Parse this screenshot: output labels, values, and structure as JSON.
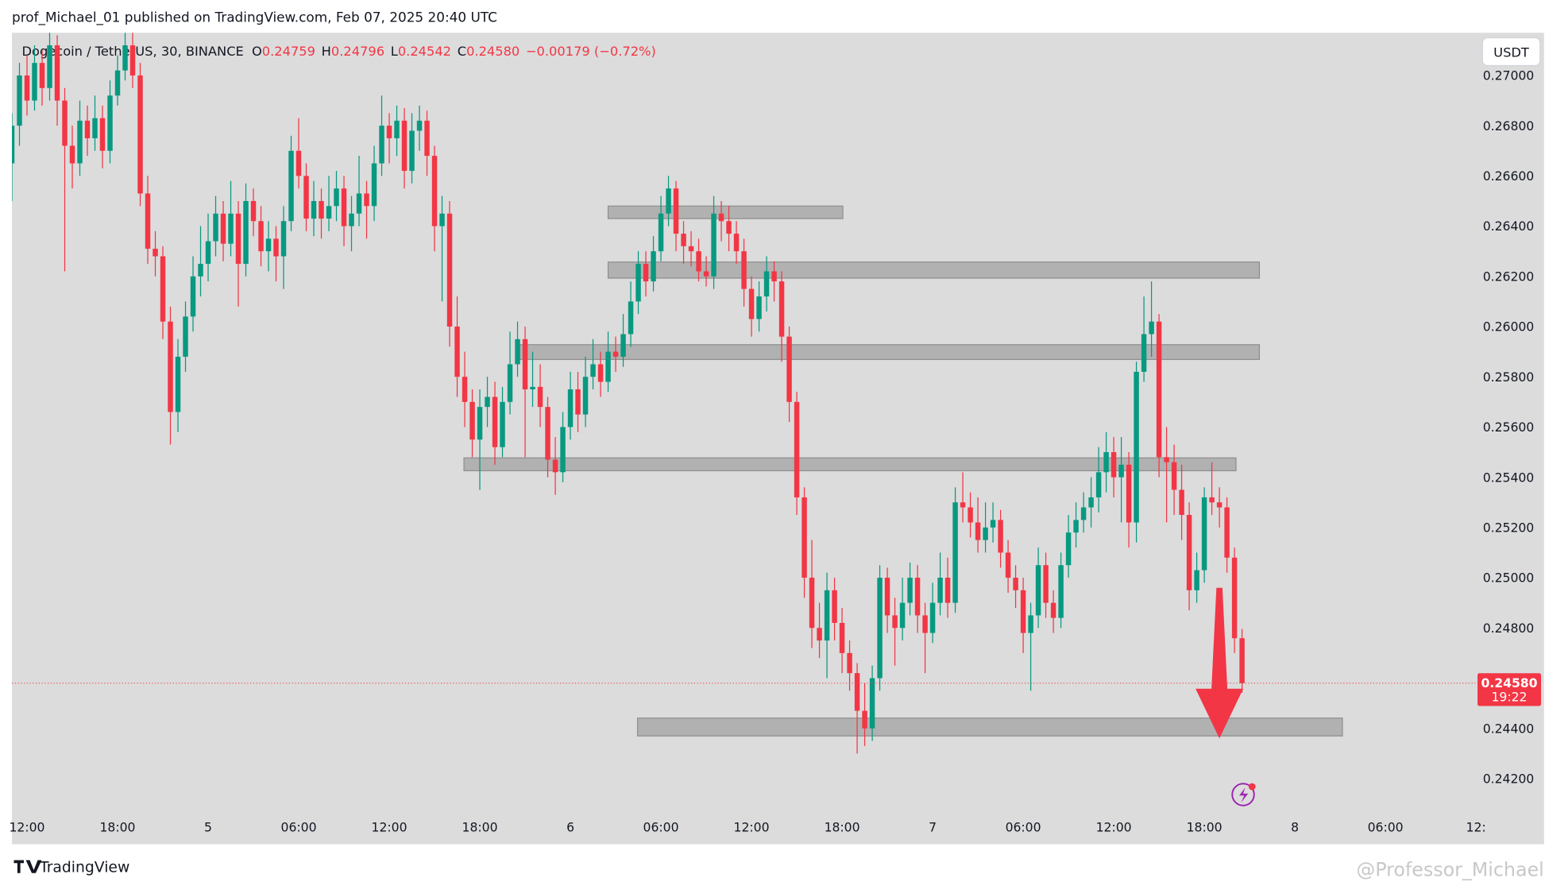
{
  "header": {
    "publisher": "prof_Michael_01 published on TradingView.com, Feb 07, 2025 20:40 UTC"
  },
  "chart_data": {
    "type": "candlestick",
    "symbol": "Dogecoin / TetherUS, 30, BINANCE",
    "legend": {
      "o_label": "O",
      "open": 0.24759,
      "h_label": "H",
      "high": 0.24796,
      "l_label": "L",
      "low": 0.24542,
      "c_label": "C",
      "close": "0.24580",
      "change": "−0.00179 (−0.72%)"
    },
    "currency": "USDT",
    "last_price": {
      "value": 0.2458,
      "label": "0.24580"
    },
    "countdown": "19:22",
    "up_color": "#089981",
    "down_color": "#f23645",
    "zone_color": "#a9a9a9",
    "ohlc": [
      [
        0.2665,
        0.2685,
        0.265,
        0.268
      ],
      [
        0.268,
        0.2705,
        0.2672,
        0.27
      ],
      [
        0.27,
        0.2708,
        0.2684,
        0.269
      ],
      [
        0.269,
        0.2712,
        0.2686,
        0.2705
      ],
      [
        0.2705,
        0.271,
        0.2688,
        0.2695
      ],
      [
        0.2695,
        0.2718,
        0.269,
        0.2712
      ],
      [
        0.2712,
        0.2716,
        0.268,
        0.269
      ],
      [
        0.269,
        0.2695,
        0.2622,
        0.2672
      ],
      [
        0.2672,
        0.268,
        0.2655,
        0.2665
      ],
      [
        0.2665,
        0.269,
        0.266,
        0.2682
      ],
      [
        0.2682,
        0.2688,
        0.2668,
        0.2675
      ],
      [
        0.2675,
        0.2692,
        0.267,
        0.2683
      ],
      [
        0.2683,
        0.2688,
        0.2663,
        0.267
      ],
      [
        0.267,
        0.2698,
        0.2665,
        0.2692
      ],
      [
        0.2692,
        0.2708,
        0.2688,
        0.2702
      ],
      [
        0.2702,
        0.272,
        0.2698,
        0.2712
      ],
      [
        0.2712,
        0.2718,
        0.2695,
        0.27
      ],
      [
        0.27,
        0.2705,
        0.2648,
        0.2653
      ],
      [
        0.2653,
        0.266,
        0.2625,
        0.2631
      ],
      [
        0.2631,
        0.2638,
        0.262,
        0.2628
      ],
      [
        0.2628,
        0.2632,
        0.2595,
        0.2602
      ],
      [
        0.2602,
        0.2608,
        0.2553,
        0.2566
      ],
      [
        0.2566,
        0.2595,
        0.2558,
        0.2588
      ],
      [
        0.2588,
        0.261,
        0.2582,
        0.2604
      ],
      [
        0.2604,
        0.2628,
        0.2598,
        0.262
      ],
      [
        0.262,
        0.264,
        0.2612,
        0.2625
      ],
      [
        0.2625,
        0.2645,
        0.2618,
        0.2634
      ],
      [
        0.2634,
        0.2652,
        0.2628,
        0.2645
      ],
      [
        0.2645,
        0.265,
        0.2626,
        0.2633
      ],
      [
        0.2633,
        0.2658,
        0.2628,
        0.2645
      ],
      [
        0.2645,
        0.265,
        0.2608,
        0.2625
      ],
      [
        0.2625,
        0.2657,
        0.262,
        0.265
      ],
      [
        0.265,
        0.2655,
        0.2636,
        0.2642
      ],
      [
        0.2642,
        0.2648,
        0.2624,
        0.263
      ],
      [
        0.263,
        0.2642,
        0.2622,
        0.2635
      ],
      [
        0.2635,
        0.264,
        0.2618,
        0.2628
      ],
      [
        0.2628,
        0.2648,
        0.2615,
        0.2642
      ],
      [
        0.2642,
        0.2676,
        0.2638,
        0.267
      ],
      [
        0.267,
        0.2683,
        0.2655,
        0.266
      ],
      [
        0.266,
        0.2665,
        0.2638,
        0.2643
      ],
      [
        0.2643,
        0.2658,
        0.2636,
        0.265
      ],
      [
        0.265,
        0.2655,
        0.2635,
        0.2643
      ],
      [
        0.2643,
        0.266,
        0.2638,
        0.2648
      ],
      [
        0.2648,
        0.2662,
        0.2642,
        0.2655
      ],
      [
        0.2655,
        0.266,
        0.2632,
        0.264
      ],
      [
        0.264,
        0.2652,
        0.263,
        0.2645
      ],
      [
        0.2645,
        0.2668,
        0.264,
        0.2653
      ],
      [
        0.2653,
        0.2658,
        0.2635,
        0.2648
      ],
      [
        0.2648,
        0.2672,
        0.2642,
        0.2665
      ],
      [
        0.2665,
        0.2692,
        0.266,
        0.268
      ],
      [
        0.268,
        0.2685,
        0.2665,
        0.2675
      ],
      [
        0.2675,
        0.2688,
        0.2668,
        0.2682
      ],
      [
        0.2682,
        0.2687,
        0.2655,
        0.2662
      ],
      [
        0.2662,
        0.2685,
        0.2657,
        0.2678
      ],
      [
        0.2678,
        0.2688,
        0.267,
        0.2682
      ],
      [
        0.2682,
        0.2686,
        0.266,
        0.2668
      ],
      [
        0.2668,
        0.2672,
        0.263,
        0.264
      ],
      [
        0.264,
        0.2652,
        0.261,
        0.2645
      ],
      [
        0.2645,
        0.265,
        0.2592,
        0.26
      ],
      [
        0.26,
        0.2612,
        0.2572,
        0.258
      ],
      [
        0.258,
        0.259,
        0.256,
        0.257
      ],
      [
        0.257,
        0.2575,
        0.2548,
        0.2555
      ],
      [
        0.2555,
        0.2575,
        0.2535,
        0.2568
      ],
      [
        0.2568,
        0.258,
        0.256,
        0.2572
      ],
      [
        0.2572,
        0.2578,
        0.2545,
        0.2552
      ],
      [
        0.2552,
        0.2576,
        0.2548,
        0.257
      ],
      [
        0.257,
        0.2598,
        0.2565,
        0.2585
      ],
      [
        0.2585,
        0.2602,
        0.258,
        0.2595
      ],
      [
        0.2595,
        0.26,
        0.2548,
        0.2575
      ],
      [
        0.2575,
        0.259,
        0.2568,
        0.2576
      ],
      [
        0.2576,
        0.2585,
        0.256,
        0.2568
      ],
      [
        0.2568,
        0.2572,
        0.254,
        0.2547
      ],
      [
        0.2547,
        0.2556,
        0.2533,
        0.2542
      ],
      [
        0.2542,
        0.2566,
        0.2538,
        0.256
      ],
      [
        0.256,
        0.2582,
        0.2555,
        0.2575
      ],
      [
        0.2575,
        0.2582,
        0.2558,
        0.2565
      ],
      [
        0.2565,
        0.2588,
        0.256,
        0.258
      ],
      [
        0.258,
        0.2595,
        0.2575,
        0.2585
      ],
      [
        0.2585,
        0.259,
        0.2572,
        0.2578
      ],
      [
        0.2578,
        0.2598,
        0.2574,
        0.259
      ],
      [
        0.259,
        0.2596,
        0.2582,
        0.2588
      ],
      [
        0.2588,
        0.2605,
        0.2584,
        0.2597
      ],
      [
        0.2597,
        0.2618,
        0.2592,
        0.261
      ],
      [
        0.261,
        0.263,
        0.2605,
        0.2625
      ],
      [
        0.2625,
        0.263,
        0.2612,
        0.2618
      ],
      [
        0.2618,
        0.2636,
        0.2614,
        0.263
      ],
      [
        0.263,
        0.2652,
        0.2626,
        0.2645
      ],
      [
        0.2645,
        0.266,
        0.264,
        0.2655
      ],
      [
        0.2655,
        0.2658,
        0.263,
        0.2637
      ],
      [
        0.2637,
        0.2642,
        0.2625,
        0.2632
      ],
      [
        0.2632,
        0.2638,
        0.2624,
        0.263
      ],
      [
        0.263,
        0.2635,
        0.2618,
        0.2622
      ],
      [
        0.2622,
        0.2628,
        0.2616,
        0.262
      ],
      [
        0.262,
        0.2652,
        0.2615,
        0.2645
      ],
      [
        0.2645,
        0.265,
        0.2634,
        0.2642
      ],
      [
        0.2642,
        0.2648,
        0.263,
        0.2637
      ],
      [
        0.2637,
        0.2642,
        0.2625,
        0.263
      ],
      [
        0.263,
        0.2635,
        0.2608,
        0.2615
      ],
      [
        0.2615,
        0.262,
        0.2596,
        0.2603
      ],
      [
        0.2603,
        0.2618,
        0.2598,
        0.2612
      ],
      [
        0.2612,
        0.2628,
        0.2606,
        0.2622
      ],
      [
        0.2622,
        0.2626,
        0.261,
        0.2618
      ],
      [
        0.2618,
        0.2622,
        0.2586,
        0.2596
      ],
      [
        0.2596,
        0.26,
        0.2562,
        0.257
      ],
      [
        0.257,
        0.2574,
        0.2525,
        0.2532
      ],
      [
        0.2532,
        0.2536,
        0.2492,
        0.25
      ],
      [
        0.25,
        0.2515,
        0.2472,
        0.248
      ],
      [
        0.248,
        0.249,
        0.2468,
        0.2475
      ],
      [
        0.2475,
        0.2502,
        0.246,
        0.2495
      ],
      [
        0.2495,
        0.25,
        0.2475,
        0.2482
      ],
      [
        0.2482,
        0.2488,
        0.2462,
        0.247
      ],
      [
        0.247,
        0.2475,
        0.2455,
        0.2462
      ],
      [
        0.2462,
        0.2466,
        0.243,
        0.2447
      ],
      [
        0.2447,
        0.2458,
        0.2433,
        0.244
      ],
      [
        0.244,
        0.2465,
        0.2435,
        0.246
      ],
      [
        0.246,
        0.2505,
        0.2455,
        0.25
      ],
      [
        0.25,
        0.2504,
        0.2478,
        0.2485
      ],
      [
        0.2485,
        0.2492,
        0.2465,
        0.248
      ],
      [
        0.248,
        0.25,
        0.2475,
        0.249
      ],
      [
        0.249,
        0.2506,
        0.2485,
        0.25
      ],
      [
        0.25,
        0.2505,
        0.2478,
        0.2485
      ],
      [
        0.2485,
        0.249,
        0.2462,
        0.2478
      ],
      [
        0.2478,
        0.2498,
        0.2474,
        0.249
      ],
      [
        0.249,
        0.251,
        0.2485,
        0.25
      ],
      [
        0.25,
        0.2508,
        0.2484,
        0.249
      ],
      [
        0.249,
        0.2536,
        0.2486,
        0.253
      ],
      [
        0.253,
        0.2542,
        0.2522,
        0.2528
      ],
      [
        0.2528,
        0.2534,
        0.2516,
        0.2522
      ],
      [
        0.2522,
        0.2532,
        0.251,
        0.2515
      ],
      [
        0.2515,
        0.253,
        0.251,
        0.252
      ],
      [
        0.252,
        0.253,
        0.2514,
        0.2523
      ],
      [
        0.2523,
        0.2527,
        0.2504,
        0.251
      ],
      [
        0.251,
        0.2515,
        0.2494,
        0.25
      ],
      [
        0.25,
        0.2505,
        0.2488,
        0.2495
      ],
      [
        0.2495,
        0.25,
        0.247,
        0.2478
      ],
      [
        0.2478,
        0.249,
        0.2455,
        0.2485
      ],
      [
        0.2485,
        0.2512,
        0.248,
        0.2505
      ],
      [
        0.2505,
        0.251,
        0.2484,
        0.249
      ],
      [
        0.249,
        0.2495,
        0.2478,
        0.2484
      ],
      [
        0.2484,
        0.251,
        0.248,
        0.2505
      ],
      [
        0.2505,
        0.2525,
        0.25,
        0.2518
      ],
      [
        0.2518,
        0.253,
        0.2512,
        0.2523
      ],
      [
        0.2523,
        0.2534,
        0.2518,
        0.2528
      ],
      [
        0.2528,
        0.254,
        0.252,
        0.2532
      ],
      [
        0.2532,
        0.2552,
        0.2526,
        0.2542
      ],
      [
        0.2542,
        0.2558,
        0.2534,
        0.255
      ],
      [
        0.255,
        0.2556,
        0.2532,
        0.254
      ],
      [
        0.254,
        0.2556,
        0.2522,
        0.2545
      ],
      [
        0.2545,
        0.255,
        0.2512,
        0.2522
      ],
      [
        0.2522,
        0.2586,
        0.2514,
        0.2582
      ],
      [
        0.2582,
        0.2612,
        0.2578,
        0.2597
      ],
      [
        0.2597,
        0.2618,
        0.2588,
        0.2602
      ],
      [
        0.2602,
        0.2605,
        0.254,
        0.2548
      ],
      [
        0.2548,
        0.256,
        0.2522,
        0.2546
      ],
      [
        0.2546,
        0.2553,
        0.2525,
        0.2535
      ],
      [
        0.2535,
        0.2545,
        0.2515,
        0.2525
      ],
      [
        0.2525,
        0.253,
        0.2487,
        0.2495
      ],
      [
        0.2495,
        0.251,
        0.249,
        0.2503
      ],
      [
        0.2503,
        0.2536,
        0.2498,
        0.2532
      ],
      [
        0.2532,
        0.2546,
        0.2525,
        0.253
      ],
      [
        0.253,
        0.2536,
        0.252,
        0.2528
      ],
      [
        0.2528,
        0.2532,
        0.2502,
        0.2508
      ],
      [
        0.2508,
        0.2512,
        0.247,
        0.24759
      ],
      [
        0.24759,
        0.24796,
        0.24542,
        0.2458
      ]
    ],
    "xlim": [
      0,
      194.2
    ],
    "xticks": [
      {
        "value": 2,
        "label": "12:00"
      },
      {
        "value": 14,
        "label": "18:00"
      },
      {
        "value": 26,
        "label": "5"
      },
      {
        "value": 38,
        "label": "06:00"
      },
      {
        "value": 50,
        "label": "12:00"
      },
      {
        "value": 62,
        "label": "18:00"
      },
      {
        "value": 74,
        "label": "6"
      },
      {
        "value": 86,
        "label": "06:00"
      },
      {
        "value": 98,
        "label": "12:00"
      },
      {
        "value": 110,
        "label": "18:00"
      },
      {
        "value": 122,
        "label": "7"
      },
      {
        "value": 134,
        "label": "06:00"
      },
      {
        "value": 146,
        "label": "12:00"
      },
      {
        "value": 158,
        "label": "18:00"
      },
      {
        "value": 170,
        "label": "8"
      },
      {
        "value": 182,
        "label": "06:00"
      },
      {
        "value": 194,
        "label": "12:"
      }
    ],
    "ylim": [
      0.24077,
      0.2717
    ],
    "yticks": [
      {
        "value": 0.27,
        "label": "0.27000"
      },
      {
        "value": 0.268,
        "label": "0.26800"
      },
      {
        "value": 0.266,
        "label": "0.26600"
      },
      {
        "value": 0.264,
        "label": "0.26400"
      },
      {
        "value": 0.262,
        "label": "0.26200"
      },
      {
        "value": 0.26,
        "label": "0.26000"
      },
      {
        "value": 0.258,
        "label": "0.25800"
      },
      {
        "value": 0.256,
        "label": "0.25600"
      },
      {
        "value": 0.254,
        "label": "0.25400"
      },
      {
        "value": 0.252,
        "label": "0.25200"
      },
      {
        "value": 0.25,
        "label": "0.25000"
      },
      {
        "value": 0.248,
        "label": "0.24800"
      },
      {
        "value": 0.246,
        "label": "0.24600"
      },
      {
        "value": 0.244,
        "label": "0.24400"
      },
      {
        "value": 0.242,
        "label": "0.24200"
      }
    ],
    "grid": false,
    "zones": [
      {
        "x": [
          79,
          110.1
        ],
        "y": [
          0.2643,
          0.2648
        ]
      },
      {
        "x": [
          79,
          165.3
        ],
        "y": [
          0.26193,
          0.26257
        ]
      },
      {
        "x": [
          67,
          165.3
        ],
        "y": [
          0.25869,
          0.25928
        ]
      },
      {
        "x": [
          59.9,
          162.2
        ],
        "y": [
          0.25426,
          0.25477
        ]
      },
      {
        "x": [
          82.9,
          176.3
        ],
        "y": [
          0.2437,
          0.24441
        ]
      }
    ],
    "arrow": {
      "x": 160,
      "y": [
        0.2496,
        0.2436
      ],
      "color": "#f23645"
    }
  },
  "footer": {
    "brand": "TradingView",
    "watermark": "@Professor_Michael"
  }
}
